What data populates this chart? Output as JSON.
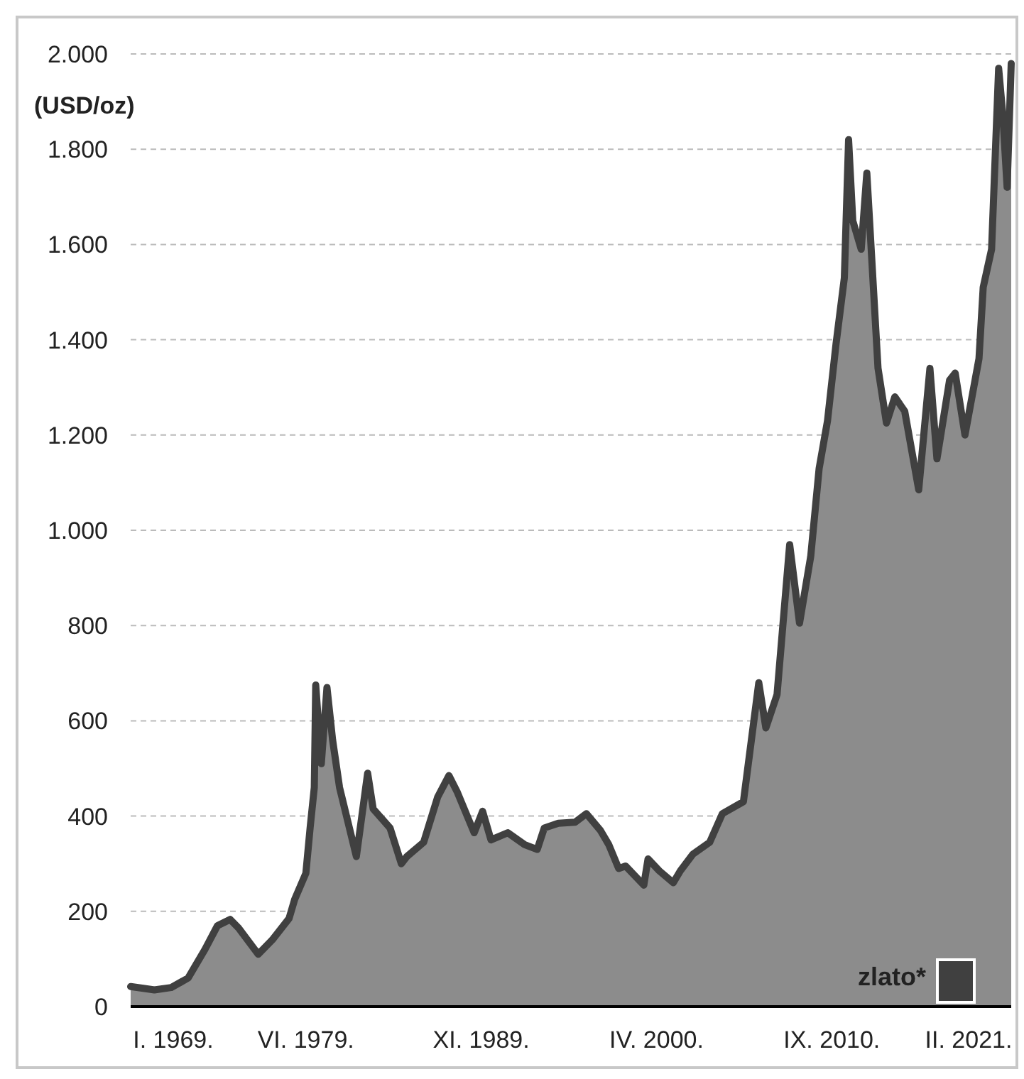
{
  "chart_data": {
    "type": "area",
    "ylabel": "(USD/oz)",
    "x": [
      "1969-01",
      "1970-06",
      "1971-06",
      "1972-06",
      "1973-06",
      "1974-03",
      "1974-12",
      "1975-06",
      "1976-08",
      "1977-06",
      "1978-06",
      "1978-10",
      "1979-06",
      "1979-09",
      "1979-12",
      "1980-01",
      "1980-05",
      "1980-09",
      "1981-01",
      "1981-06",
      "1982-06",
      "1983-02",
      "1983-06",
      "1984-06",
      "1985-02",
      "1985-06",
      "1986-06",
      "1987-04",
      "1987-12",
      "1988-06",
      "1989-06",
      "1989-12",
      "1990-06",
      "1991-06",
      "1992-06",
      "1993-03",
      "1993-08",
      "1994-06",
      "1995-06",
      "1996-02",
      "1996-12",
      "1997-06",
      "1998-01",
      "1998-06",
      "1999-07",
      "1999-10",
      "2000-06",
      "2001-04",
      "2001-09",
      "2002-06",
      "2003-06",
      "2004-03",
      "2005-06",
      "2006-05",
      "2006-10",
      "2007-06",
      "2008-03",
      "2008-10",
      "2009-06",
      "2009-12",
      "2010-06",
      "2010-12",
      "2011-06",
      "2011-09",
      "2011-12",
      "2012-06",
      "2012-10",
      "2013-06",
      "2013-12",
      "2014-06",
      "2015-01",
      "2015-11",
      "2016-07",
      "2016-12",
      "2017-09",
      "2018-01",
      "2018-08",
      "2019-06",
      "2019-09",
      "2020-03",
      "2020-08",
      "2020-11",
      "2021-02",
      "2021-05"
    ],
    "series": [
      {
        "name": "zlato*",
        "color": "#404040",
        "values": [
          42,
          35,
          40,
          60,
          120,
          170,
          183,
          165,
          110,
          140,
          185,
          225,
          280,
          375,
          460,
          675,
          510,
          670,
          560,
          460,
          315,
          490,
          415,
          375,
          300,
          315,
          345,
          440,
          485,
          450,
          365,
          410,
          350,
          365,
          340,
          330,
          375,
          385,
          387,
          405,
          370,
          340,
          290,
          295,
          255,
          310,
          285,
          260,
          285,
          320,
          345,
          405,
          430,
          680,
          585,
          655,
          970,
          805,
          945,
          1130,
          1230,
          1390,
          1530,
          1820,
          1650,
          1590,
          1750,
          1340,
          1225,
          1280,
          1250,
          1085,
          1340,
          1150,
          1315,
          1330,
          1200,
          1360,
          1510,
          1590,
          1970,
          1870,
          1720,
          1980
        ]
      }
    ],
    "xlim": [
      "1969-01",
      "2021-05"
    ],
    "xticks": [
      {
        "value": "1969-01",
        "label": "I. 1969."
      },
      {
        "value": "1979-06",
        "label": "VI. 1979."
      },
      {
        "value": "1989-11",
        "label": "XI. 1989."
      },
      {
        "value": "2000-04",
        "label": "IV. 2000."
      },
      {
        "value": "2010-09",
        "label": "IX. 2010."
      },
      {
        "value": "2021-02",
        "label": "II. 2021."
      }
    ],
    "ylim": [
      0,
      2000
    ],
    "yticks": [
      0,
      200,
      400,
      600,
      800,
      {
        "value": 1000,
        "label": "1.000"
      },
      {
        "value": 1200,
        "label": "1.200"
      },
      {
        "value": 1400,
        "label": "1.400"
      },
      {
        "value": 1600,
        "label": "1.600"
      },
      {
        "value": 1800,
        "label": "1.800"
      },
      {
        "value": 2000,
        "label": "2.000"
      }
    ],
    "grid": "y",
    "legend": "bottom right",
    "line_style": "solid",
    "marker": "none"
  }
}
